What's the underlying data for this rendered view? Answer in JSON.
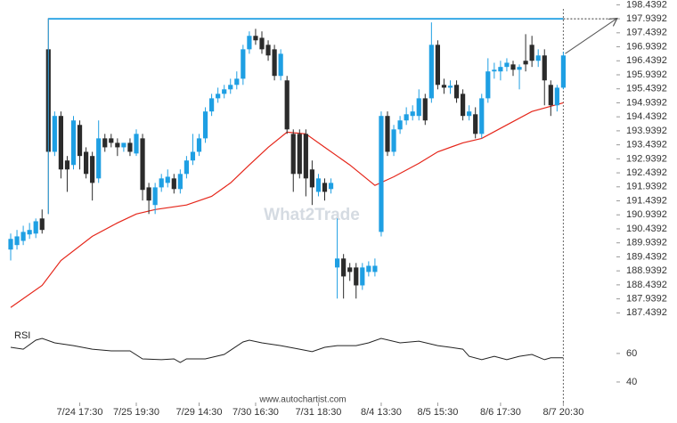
{
  "chart_data": {
    "type": "candlestick",
    "categories": [
      null,
      null,
      null,
      null,
      null,
      null,
      null,
      null,
      null,
      null,
      null,
      "7/24 17:30",
      null,
      null,
      null,
      null,
      null,
      null,
      null,
      null,
      "7/25 19:30",
      null,
      null,
      null,
      null,
      null,
      null,
      null,
      null,
      null,
      "7/29 14:30",
      null,
      null,
      null,
      null,
      null,
      null,
      null,
      null,
      "7/30 16:30",
      null,
      null,
      null,
      null,
      null,
      null,
      null,
      null,
      null,
      "7/31 18:30",
      null,
      null,
      null,
      null,
      null,
      null,
      null,
      null,
      null,
      "8/4 13:30",
      null,
      null,
      null,
      null,
      null,
      null,
      null,
      null,
      "8/5 15:30",
      null,
      null,
      null,
      null,
      null,
      null,
      null,
      null,
      null,
      "8/6 17:30",
      null,
      null,
      null,
      null,
      null,
      null,
      null,
      null,
      null,
      "8/7 20:30"
    ],
    "open": [
      189.7,
      189.86,
      190.01,
      190.24,
      190.27,
      190.81,
      196.85,
      193.19,
      194.47,
      192.88,
      192.72,
      194.15,
      193.19,
      193.04,
      192.24,
      193.67,
      193.67,
      193.51,
      193.35,
      193.51,
      193.13,
      193.67,
      191.92,
      191.29,
      191.92,
      192.08,
      192.24,
      191.86,
      192.4,
      192.88,
      193.19,
      193.67,
      194.63,
      195.1,
      195.26,
      195.42,
      195.58,
      195.8,
      196.85,
      197.33,
      197.26,
      197.01,
      196.85,
      195.9,
      195.74,
      193.83,
      193.83,
      193.83,
      192.56,
      191.76,
      192.08,
      191.86,
      189.06,
      189.38,
      189.06,
      189.06,
      188.42,
      188.9,
      188.9,
      190.33,
      194.47,
      193.19,
      193.99,
      194.31,
      194.47,
      194.47,
      195.1,
      195.1,
      197.01,
      195.58,
      195.48,
      195.58,
      195.26,
      194.47,
      194.53,
      193.83,
      195.1,
      196.06,
      196.06,
      196.22,
      196.31,
      196.12,
      196.44,
      197.01,
      196.44,
      196.63,
      195.58,
      194.85,
      195.48
    ],
    "high": [
      190.27,
      190.4,
      190.55,
      190.65,
      190.81,
      191.13,
      197.96,
      194.63,
      194.63,
      193.04,
      194.47,
      194.31,
      193.35,
      193.19,
      194.31,
      193.83,
      193.83,
      193.67,
      193.51,
      193.67,
      193.99,
      193.83,
      192.08,
      192.08,
      192.4,
      192.56,
      192.4,
      192.56,
      193.04,
      193.83,
      193.83,
      194.78,
      195.26,
      195.48,
      195.58,
      195.8,
      196.06,
      197.01,
      197.49,
      197.58,
      197.49,
      197.17,
      197.01,
      196.85,
      195.9,
      193.99,
      193.99,
      193.99,
      192.88,
      192.4,
      192.24,
      192.24,
      190.81,
      189.54,
      189.22,
      189.22,
      189.22,
      189.28,
      189.38,
      194.63,
      194.63,
      194.15,
      194.47,
      194.78,
      194.85,
      195.42,
      195.26,
      197.81,
      197.17,
      195.8,
      195.74,
      195.74,
      195.42,
      194.85,
      194.78,
      195.26,
      196.53,
      196.37,
      196.44,
      196.53,
      196.44,
      196.31,
      197.39,
      197.33,
      196.85,
      196.85,
      195.74,
      195.58,
      196.76
    ],
    "low": [
      189.31,
      189.7,
      189.86,
      190.08,
      190.11,
      190.27,
      190.97,
      193.04,
      192.24,
      191.76,
      192.56,
      192.56,
      192.24,
      191.45,
      192.08,
      193.19,
      193.35,
      193.04,
      193.19,
      193.04,
      193.04,
      191.45,
      190.97,
      190.97,
      191.76,
      191.92,
      191.7,
      191.7,
      192.24,
      192.72,
      193.04,
      193.51,
      194.47,
      194.94,
      195.1,
      195.26,
      195.42,
      195.58,
      196.69,
      197.01,
      196.69,
      196.44,
      195.74,
      195.74,
      193.83,
      191.76,
      192.24,
      191.6,
      191.29,
      191.6,
      191.45,
      191.7,
      187.95,
      187.95,
      188.58,
      187.95,
      188.26,
      188.74,
      188.74,
      190.17,
      193.04,
      193.04,
      193.83,
      194.15,
      194.31,
      194.31,
      194.15,
      194.94,
      195.42,
      195.26,
      195.26,
      194.94,
      194.31,
      194.31,
      193.67,
      193.67,
      194.94,
      195.8,
      195.74,
      196.06,
      195.9,
      195.42,
      196.06,
      196.22,
      196.22,
      194.85,
      194.47,
      194.63,
      195.42
    ],
    "close": [
      190.08,
      190.17,
      190.33,
      190.4,
      190.71,
      190.4,
      193.19,
      194.47,
      192.56,
      192.56,
      194.31,
      193.04,
      192.4,
      192.08,
      193.67,
      193.35,
      193.51,
      193.35,
      193.51,
      193.19,
      193.83,
      191.83,
      191.45,
      191.92,
      192.24,
      192.3,
      191.86,
      192.4,
      192.88,
      193.19,
      193.67,
      194.63,
      195.1,
      195.26,
      195.42,
      195.58,
      195.8,
      196.85,
      197.33,
      197.17,
      196.85,
      196.63,
      195.9,
      196.69,
      193.99,
      192.4,
      192.4,
      192.24,
      191.92,
      192.24,
      191.76,
      192.08,
      189.38,
      188.74,
      188.9,
      188.42,
      189.06,
      189.12,
      189.12,
      194.47,
      193.19,
      193.99,
      194.31,
      194.53,
      194.63,
      195.1,
      194.31,
      197.01,
      195.58,
      195.48,
      195.55,
      195.1,
      194.47,
      194.63,
      193.83,
      195.1,
      196.06,
      196.12,
      196.22,
      196.37,
      196.12,
      196.22,
      196.31,
      196.44,
      196.63,
      195.74,
      194.85,
      195.48,
      196.63
    ],
    "up_color": "#1e9fe3",
    "down_color": "#2b2b2b",
    "ylim": [
      187.1,
      198.61
    ],
    "yticks": [
      187.4392,
      187.9392,
      188.4392,
      188.9392,
      189.4392,
      189.9392,
      190.4392,
      190.9392,
      191.4392,
      191.9392,
      192.4392,
      192.9392,
      193.4392,
      193.9392,
      194.4392,
      194.9392,
      195.4392,
      195.9392,
      196.4392,
      196.9392,
      197.4392,
      197.9392,
      198.4392
    ],
    "ma": {
      "color": "#e5261a",
      "x": [
        0,
        5,
        8,
        13,
        17,
        20,
        23,
        28,
        32,
        35,
        38,
        41,
        44,
        47,
        50,
        54,
        58,
        61,
        65,
        68,
        72,
        75,
        79,
        83,
        88
      ],
      "values": [
        187.63,
        188.42,
        189.31,
        190.17,
        190.65,
        190.97,
        191.13,
        191.29,
        191.6,
        192.08,
        192.72,
        193.35,
        193.89,
        193.83,
        193.35,
        192.72,
        191.99,
        192.3,
        192.78,
        193.19,
        193.51,
        193.67,
        194.15,
        194.63,
        194.94
      ]
    },
    "resistance": {
      "from": 6,
      "level": 197.9392,
      "color": "#35a8e6"
    },
    "rsi": {
      "name": "RSI",
      "color": "#222",
      "x": [
        0,
        2,
        4,
        5,
        7,
        10,
        13,
        16,
        19,
        21,
        24,
        26,
        27,
        28,
        31,
        34,
        37,
        38,
        40,
        43,
        46,
        48,
        50,
        52,
        55,
        57,
        59,
        62,
        65,
        68,
        70,
        72,
        73,
        75,
        77,
        79,
        81,
        83,
        85,
        86,
        88
      ],
      "values": [
        64.3,
        63.0,
        69.3,
        70.5,
        67.4,
        65.5,
        63.0,
        61.8,
        61.8,
        56.2,
        55.6,
        56.2,
        53.7,
        56.2,
        56.2,
        59.3,
        68.0,
        69.3,
        67.4,
        65.5,
        63.0,
        61.2,
        64.3,
        65.5,
        65.5,
        67.4,
        70.5,
        67.4,
        68.6,
        65.5,
        64.3,
        63.0,
        58.0,
        55.6,
        58.0,
        55.6,
        58.0,
        59.3,
        55.6,
        56.9,
        56.9
      ],
      "ylim": [
        30,
        78
      ],
      "yticks": [
        40,
        60
      ]
    },
    "watermark": "What2Trade",
    "source": "www.autochartist.com"
  }
}
